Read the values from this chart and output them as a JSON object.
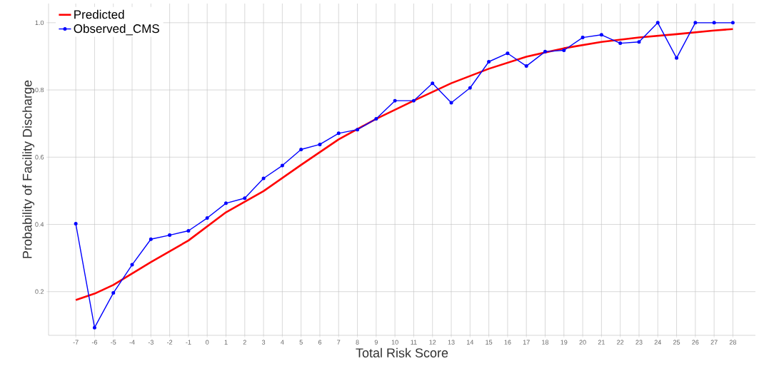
{
  "chart_data": {
    "type": "line",
    "xlabel": "Total Risk Score",
    "ylabel": "Probability of Facility Discharge",
    "xlim": [
      -8.45,
      29.2
    ],
    "ylim": [
      0.07,
      1.057
    ],
    "xticks": [
      -7,
      -6,
      -5,
      -4,
      -3,
      -2,
      -1,
      0,
      1,
      2,
      3,
      4,
      5,
      6,
      7,
      8,
      9,
      10,
      11,
      12,
      13,
      14,
      15,
      16,
      17,
      18,
      19,
      20,
      21,
      22,
      23,
      24,
      25,
      26,
      27,
      28
    ],
    "yticks": [
      0.2,
      0.4,
      0.6,
      0.8,
      {
        "value": 1.0,
        "label": "1.0"
      }
    ],
    "grid": true,
    "legend": "top left",
    "series": [
      {
        "name": "Predicted",
        "color": "#ff0000",
        "marker": "none",
        "x": [
          -7,
          -6,
          -5,
          -3,
          -1,
          1,
          3,
          5,
          7,
          9,
          11,
          13,
          15,
          17,
          19,
          21,
          23,
          25,
          27,
          28
        ],
        "values": [
          0.175,
          0.194,
          0.22,
          0.288,
          0.352,
          0.436,
          0.499,
          0.577,
          0.653,
          0.714,
          0.768,
          0.82,
          0.863,
          0.899,
          0.924,
          0.943,
          0.956,
          0.966,
          0.977,
          0.981
        ]
      },
      {
        "name": "Observed_CMS",
        "color": "#0000ff",
        "marker": "circle",
        "x": [
          -7,
          -6,
          -5,
          -4,
          -3,
          -2,
          -1,
          0,
          1,
          2,
          3,
          4,
          5,
          6,
          7,
          8,
          9,
          10,
          11,
          12,
          13,
          14,
          15,
          16,
          17,
          18,
          19,
          20,
          21,
          22,
          23,
          24,
          25,
          26,
          27,
          28
        ],
        "values": [
          0.402,
          0.093,
          0.196,
          0.28,
          0.356,
          0.368,
          0.381,
          0.419,
          0.463,
          0.478,
          0.537,
          0.575,
          0.623,
          0.638,
          0.671,
          0.682,
          0.714,
          0.768,
          0.768,
          0.82,
          0.762,
          0.806,
          0.884,
          0.909,
          0.871,
          0.914,
          0.918,
          0.956,
          0.964,
          0.939,
          0.943,
          1.0,
          0.895,
          1.0,
          1.0,
          1.0
        ]
      }
    ]
  }
}
